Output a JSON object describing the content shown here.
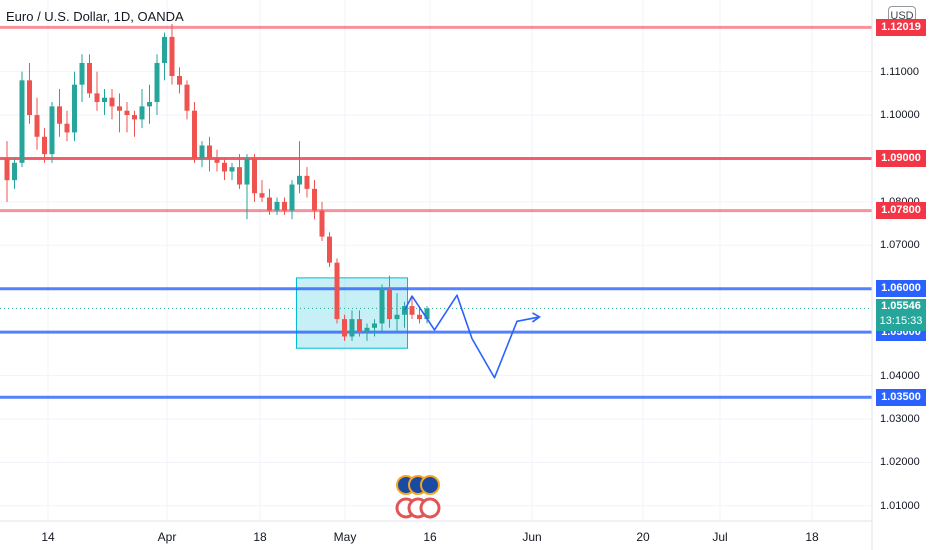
{
  "header": {
    "title": "Euro / U.S. Dollar, 1D, OANDA",
    "currency": "USD"
  },
  "chart_data": {
    "type": "candlestick",
    "symbol": "EURUSD",
    "interval": "1D",
    "ylim": [
      1.0065,
      1.1265
    ],
    "y_ticks": [
      "1.11000",
      "1.10000",
      "1.09000",
      "1.08000",
      "1.07000",
      "1.04000",
      "1.03000",
      "1.02000",
      "1.01000"
    ],
    "x_ticks": [
      "14",
      "Apr",
      "18",
      "May",
      "16",
      "Jun",
      "20",
      "Jul",
      "18"
    ],
    "colors": {
      "up": "#26a69a",
      "down": "#ef5350",
      "resistance": "#f23645",
      "support": "#2962ff",
      "range_box": "#00bcd4"
    },
    "levels": [
      {
        "price": 1.12019,
        "label": "1.12019",
        "kind": "resistance"
      },
      {
        "price": 1.09,
        "label": "1.09000",
        "kind": "resistance"
      },
      {
        "price": 1.078,
        "label": "1.07800",
        "kind": "resistance"
      },
      {
        "price": 1.06,
        "label": "1.06000",
        "kind": "support"
      },
      {
        "price": 1.05,
        "label": "1.05000",
        "kind": "support"
      },
      {
        "price": 1.035,
        "label": "1.03500",
        "kind": "support"
      }
    ],
    "last_price": {
      "value": 1.05546,
      "label": "1.05546",
      "countdown": "13:15:33"
    },
    "range_box": {
      "top": 1.0625,
      "bottom": 1.0463,
      "from_bar": 39,
      "to_bar": 53
    },
    "projection": [
      [
        53,
        1.055
      ],
      [
        54,
        1.0583
      ],
      [
        57,
        1.0505
      ],
      [
        60,
        1.0585
      ],
      [
        62,
        1.0485
      ],
      [
        65,
        1.0395
      ],
      [
        68,
        1.0525
      ],
      [
        71,
        1.0535
      ]
    ],
    "candles": [
      [
        1.09,
        1.094,
        1.08,
        1.085
      ],
      [
        1.085,
        1.09,
        1.083,
        1.089
      ],
      [
        1.089,
        1.11,
        1.088,
        1.108
      ],
      [
        1.108,
        1.112,
        1.098,
        1.1
      ],
      [
        1.1,
        1.104,
        1.092,
        1.095
      ],
      [
        1.095,
        1.097,
        1.089,
        1.091
      ],
      [
        1.091,
        1.103,
        1.089,
        1.102
      ],
      [
        1.102,
        1.106,
        1.095,
        1.098
      ],
      [
        1.098,
        1.101,
        1.094,
        1.096
      ],
      [
        1.096,
        1.11,
        1.094,
        1.107
      ],
      [
        1.107,
        1.114,
        1.103,
        1.112
      ],
      [
        1.112,
        1.114,
        1.104,
        1.105
      ],
      [
        1.105,
        1.11,
        1.101,
        1.103
      ],
      [
        1.103,
        1.106,
        1.1,
        1.104
      ],
      [
        1.104,
        1.106,
        1.099,
        1.102
      ],
      [
        1.102,
        1.105,
        1.096,
        1.101
      ],
      [
        1.101,
        1.103,
        1.096,
        1.1
      ],
      [
        1.1,
        1.101,
        1.095,
        1.099
      ],
      [
        1.099,
        1.106,
        1.097,
        1.102
      ],
      [
        1.102,
        1.107,
        1.098,
        1.103
      ],
      [
        1.103,
        1.114,
        1.1,
        1.112
      ],
      [
        1.112,
        1.119,
        1.108,
        1.118
      ],
      [
        1.118,
        1.121,
        1.107,
        1.109
      ],
      [
        1.109,
        1.111,
        1.105,
        1.107
      ],
      [
        1.107,
        1.108,
        1.099,
        1.101
      ],
      [
        1.101,
        1.103,
        1.089,
        1.09
      ],
      [
        1.09,
        1.094,
        1.088,
        1.093
      ],
      [
        1.093,
        1.095,
        1.087,
        1.09
      ],
      [
        1.09,
        1.092,
        1.087,
        1.089
      ],
      [
        1.089,
        1.09,
        1.085,
        1.087
      ],
      [
        1.087,
        1.089,
        1.085,
        1.088
      ],
      [
        1.088,
        1.091,
        1.083,
        1.084
      ],
      [
        1.084,
        1.091,
        1.076,
        1.09
      ],
      [
        1.09,
        1.091,
        1.08,
        1.082
      ],
      [
        1.082,
        1.085,
        1.08,
        1.081
      ],
      [
        1.081,
        1.083,
        1.077,
        1.078
      ],
      [
        1.078,
        1.081,
        1.077,
        1.08
      ],
      [
        1.08,
        1.081,
        1.077,
        1.078
      ],
      [
        1.078,
        1.085,
        1.076,
        1.084
      ],
      [
        1.084,
        1.094,
        1.082,
        1.086
      ],
      [
        1.086,
        1.088,
        1.081,
        1.083
      ],
      [
        1.083,
        1.085,
        1.076,
        1.078
      ],
      [
        1.078,
        1.08,
        1.071,
        1.072
      ],
      [
        1.072,
        1.073,
        1.065,
        1.066
      ],
      [
        1.066,
        1.067,
        1.052,
        1.053
      ],
      [
        1.053,
        1.054,
        1.048,
        1.049
      ],
      [
        1.049,
        1.055,
        1.048,
        1.053
      ],
      [
        1.053,
        1.055,
        1.049,
        1.05
      ],
      [
        1.05,
        1.052,
        1.048,
        1.051
      ],
      [
        1.051,
        1.053,
        1.049,
        1.052
      ],
      [
        1.052,
        1.061,
        1.05,
        1.06
      ],
      [
        1.06,
        1.063,
        1.051,
        1.053
      ],
      [
        1.053,
        1.059,
        1.05,
        1.054
      ],
      [
        1.054,
        1.057,
        1.051,
        1.056
      ],
      [
        1.056,
        1.058,
        1.053,
        1.054
      ],
      [
        1.054,
        1.056,
        1.052,
        1.053
      ],
      [
        1.053,
        1.056,
        1.052,
        1.05546
      ]
    ]
  }
}
